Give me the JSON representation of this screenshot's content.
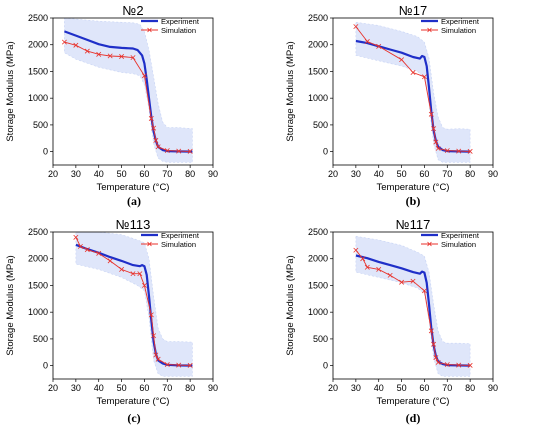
{
  "chart_data": [
    {
      "type": "line",
      "title": "№2",
      "caption": "(a)",
      "xlabel": "Temperature (°C)",
      "ylabel": "Storage Modulus (MPa)",
      "xlim": [
        20,
        90
      ],
      "ylim": [
        -250,
        2500
      ],
      "xticks": [
        20,
        30,
        40,
        50,
        60,
        70,
        80,
        90
      ],
      "yticks": [
        0,
        500,
        1000,
        1500,
        2000,
        2500
      ],
      "legend_position": "top-right",
      "band": {
        "x": [
          25,
          30,
          40,
          50,
          55,
          58,
          60,
          62,
          64,
          66,
          68,
          70,
          75,
          81
        ],
        "upper": [
          2500,
          2480,
          2440,
          2420,
          2410,
          2380,
          2250,
          1900,
          1400,
          900,
          550,
          450,
          450,
          430
        ],
        "lower": [
          1850,
          1730,
          1580,
          1480,
          1460,
          1420,
          1250,
          800,
          150,
          -120,
          -180,
          -200,
          -200,
          -200
        ]
      },
      "series": [
        {
          "name": "Experiment",
          "color": "#1f2fc8",
          "x": [
            25,
            30,
            35,
            40,
            45,
            50,
            55,
            57,
            59,
            60,
            61,
            62,
            63,
            64,
            65,
            66,
            68,
            70,
            75,
            81
          ],
          "values": [
            2250,
            2170,
            2090,
            2010,
            1960,
            1940,
            1930,
            1900,
            1800,
            1650,
            1350,
            1000,
            650,
            380,
            200,
            90,
            30,
            10,
            5,
            0
          ]
        },
        {
          "name": "Simulation",
          "color": "#e8322b",
          "x": [
            25,
            30,
            35,
            40,
            45,
            50,
            55,
            60,
            63,
            64,
            65,
            66,
            70,
            75,
            80
          ],
          "values": [
            2050,
            1990,
            1880,
            1820,
            1790,
            1780,
            1760,
            1420,
            620,
            440,
            210,
            90,
            20,
            10,
            5
          ]
        }
      ]
    },
    {
      "type": "line",
      "title": "№17",
      "caption": "(b)",
      "xlabel": "Temperature (°C)",
      "ylabel": "Storage Modulus (MPa)",
      "xlim": [
        20,
        90
      ],
      "ylim": [
        -250,
        2500
      ],
      "xticks": [
        20,
        30,
        40,
        50,
        60,
        70,
        80,
        90
      ],
      "yticks": [
        0,
        500,
        1000,
        1500,
        2000,
        2500
      ],
      "legend_position": "top-right",
      "band": {
        "x": [
          30,
          40,
          50,
          57,
          60,
          62,
          64,
          66,
          68,
          70,
          75,
          80
        ],
        "upper": [
          2420,
          2360,
          2250,
          2150,
          2050,
          1750,
          1100,
          650,
          450,
          420,
          430,
          420
        ],
        "lower": [
          1800,
          1700,
          1600,
          1500,
          1380,
          900,
          150,
          -150,
          -200,
          -200,
          -200,
          -200
        ]
      },
      "series": [
        {
          "name": "Experiment",
          "color": "#1f2fc8",
          "x": [
            30,
            35,
            40,
            45,
            50,
            55,
            58,
            59,
            60,
            61,
            62,
            63,
            64,
            65,
            66,
            68,
            70,
            75,
            80
          ],
          "values": [
            2070,
            2030,
            1970,
            1910,
            1850,
            1770,
            1740,
            1790,
            1770,
            1600,
            1200,
            750,
            400,
            200,
            90,
            30,
            10,
            5,
            0
          ]
        },
        {
          "name": "Simulation",
          "color": "#e8322b",
          "x": [
            30,
            35,
            40,
            50,
            55,
            60,
            63,
            64,
            65,
            66,
            70,
            75,
            80
          ],
          "values": [
            2340,
            2060,
            1970,
            1720,
            1480,
            1400,
            700,
            430,
            180,
            60,
            20,
            10,
            5
          ]
        }
      ]
    },
    {
      "type": "line",
      "title": "№113",
      "caption": "(c)",
      "xlabel": "Temperature (°C)",
      "ylabel": "Storage Modulus (MPa)",
      "xlim": [
        20,
        90
      ],
      "ylim": [
        -250,
        2500
      ],
      "xticks": [
        20,
        30,
        40,
        50,
        60,
        70,
        80,
        90
      ],
      "yticks": [
        0,
        500,
        1000,
        1500,
        2000,
        2500
      ],
      "legend_position": "top-right",
      "band": {
        "x": [
          30,
          40,
          50,
          57,
          60,
          62,
          64,
          66,
          68,
          70,
          75,
          81
        ],
        "upper": [
          2550,
          2500,
          2450,
          2350,
          2300,
          2000,
          1300,
          700,
          500,
          450,
          450,
          440
        ],
        "lower": [
          1900,
          1800,
          1650,
          1500,
          1400,
          900,
          100,
          -150,
          -200,
          -200,
          -200,
          -200
        ]
      },
      "series": [
        {
          "name": "Experiment",
          "color": "#1f2fc8",
          "x": [
            30,
            35,
            40,
            45,
            50,
            55,
            58,
            59,
            60,
            61,
            62,
            63,
            64,
            65,
            66,
            68,
            70,
            75,
            81
          ],
          "values": [
            2260,
            2180,
            2110,
            2030,
            1960,
            1880,
            1860,
            1880,
            1860,
            1700,
            1300,
            850,
            450,
            220,
            100,
            40,
            15,
            5,
            0
          ]
        },
        {
          "name": "Simulation",
          "color": "#e8322b",
          "x": [
            30,
            32,
            35,
            40,
            45,
            50,
            55,
            58,
            60,
            63,
            64,
            65,
            66,
            70,
            75,
            80
          ],
          "values": [
            2400,
            2230,
            2170,
            2100,
            1960,
            1800,
            1720,
            1720,
            1500,
            950,
            560,
            200,
            120,
            20,
            10,
            5
          ]
        }
      ]
    },
    {
      "type": "line",
      "title": "№117",
      "caption": "(d)",
      "xlabel": "Temperature (°C)",
      "ylabel": "Storage Modulus (MPa)",
      "xlim": [
        20,
        90
      ],
      "ylim": [
        -250,
        2500
      ],
      "xticks": [
        20,
        30,
        40,
        50,
        60,
        70,
        80,
        90
      ],
      "yticks": [
        0,
        500,
        1000,
        1500,
        2000,
        2500
      ],
      "legend_position": "top-right",
      "band": {
        "x": [
          30,
          40,
          50,
          57,
          60,
          62,
          64,
          66,
          68,
          70,
          75,
          80
        ],
        "upper": [
          2420,
          2350,
          2250,
          2120,
          2050,
          1750,
          1150,
          650,
          450,
          420,
          420,
          410
        ],
        "lower": [
          1750,
          1650,
          1550,
          1450,
          1350,
          850,
          150,
          -150,
          -200,
          -200,
          -200,
          -200
        ]
      },
      "series": [
        {
          "name": "Experiment",
          "color": "#1f2fc8",
          "x": [
            30,
            35,
            40,
            45,
            50,
            55,
            58,
            59,
            60,
            61,
            62,
            63,
            64,
            65,
            66,
            68,
            70,
            75,
            80
          ],
          "values": [
            2060,
            2010,
            1940,
            1880,
            1820,
            1750,
            1720,
            1760,
            1740,
            1550,
            1150,
            700,
            380,
            180,
            80,
            30,
            10,
            5,
            0
          ]
        },
        {
          "name": "Simulation",
          "color": "#e8322b",
          "x": [
            30,
            33,
            35,
            40,
            45,
            50,
            55,
            60,
            63,
            64,
            65,
            66,
            70,
            75,
            80
          ],
          "values": [
            2160,
            2000,
            1840,
            1800,
            1690,
            1560,
            1580,
            1400,
            650,
            400,
            150,
            60,
            20,
            10,
            5
          ]
        }
      ]
    }
  ]
}
